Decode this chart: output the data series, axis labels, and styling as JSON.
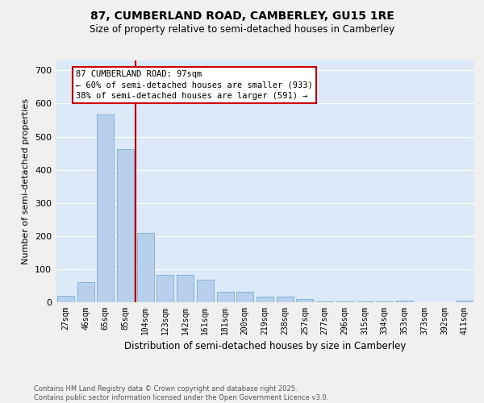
{
  "title1": "87, CUMBERLAND ROAD, CAMBERLEY, GU15 1RE",
  "title2": "Size of property relative to semi-detached houses in Camberley",
  "xlabel": "Distribution of semi-detached houses by size in Camberley",
  "ylabel": "Number of semi-detached properties",
  "categories": [
    "27sqm",
    "46sqm",
    "65sqm",
    "85sqm",
    "104sqm",
    "123sqm",
    "142sqm",
    "161sqm",
    "181sqm",
    "200sqm",
    "219sqm",
    "238sqm",
    "257sqm",
    "277sqm",
    "296sqm",
    "315sqm",
    "334sqm",
    "353sqm",
    "373sqm",
    "392sqm",
    "411sqm"
  ],
  "values": [
    20,
    62,
    568,
    462,
    210,
    83,
    83,
    68,
    32,
    32,
    17,
    17,
    10,
    3,
    3,
    3,
    3,
    5,
    0,
    0,
    5
  ],
  "bar_color": "#b8d0eb",
  "bar_edge_color": "#7aadd4",
  "vline_pos": 3.5,
  "annotation_line1": "87 CUMBERLAND ROAD: 97sqm",
  "annotation_line2": "← 60% of semi-detached houses are smaller (933)",
  "annotation_line3": "38% of semi-detached houses are larger (591) →",
  "ylim_max": 730,
  "yticks": [
    0,
    100,
    200,
    300,
    400,
    500,
    600,
    700
  ],
  "plot_bg_color": "#dce9f8",
  "fig_bg_color": "#f0f0f0",
  "grid_color": "#ffffff",
  "vline_color": "#cc0000",
  "ann_box_edge_color": "#cc0000",
  "footer1": "Contains HM Land Registry data © Crown copyright and database right 2025.",
  "footer2": "Contains public sector information licensed under the Open Government Licence v3.0."
}
